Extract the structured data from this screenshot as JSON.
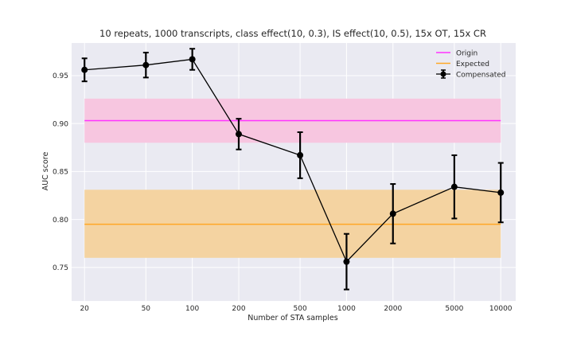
{
  "chart_data": {
    "type": "line",
    "title": "10 repeats, 1000 transcripts, class effect(10, 0.3), IS effect(10, 0.5), 15x OT, 15x CR",
    "xlabel": "Number of STA samples",
    "ylabel": "AUC score",
    "x_scale": "log",
    "xlim": [
      16.5,
      12500
    ],
    "ylim": [
      0.715,
      0.984
    ],
    "grid": true,
    "legend_position": "top-right",
    "x_ticks": [
      20,
      50,
      100,
      200,
      500,
      1000,
      2000,
      5000,
      10000
    ],
    "x_tick_labels": [
      "20",
      "50",
      "100",
      "200",
      "500",
      "1000",
      "2000",
      "5000",
      "10000"
    ],
    "y_ticks": [
      0.75,
      0.8,
      0.85,
      0.9,
      0.95
    ],
    "y_tick_labels": [
      "0.75",
      "0.80",
      "0.85",
      "0.90",
      "0.95"
    ],
    "bands": [
      {
        "name": "Origin",
        "color": "#ff33ff",
        "fill": "#f7c6e0",
        "x_range": [
          20,
          10000
        ],
        "value": 0.903,
        "lower": 0.88,
        "upper": 0.926
      },
      {
        "name": "Expected",
        "color": "#ffa726",
        "fill": "#f4d3a1",
        "x_range": [
          20,
          10000
        ],
        "value": 0.795,
        "lower": 0.76,
        "upper": 0.831
      }
    ],
    "series": [
      {
        "name": "Compensated",
        "color": "#000000",
        "x": [
          20,
          50,
          100,
          200,
          500,
          1000,
          2000,
          5000,
          10000
        ],
        "y": [
          0.956,
          0.961,
          0.967,
          0.889,
          0.867,
          0.756,
          0.806,
          0.834,
          0.828
        ],
        "err": [
          0.012,
          0.013,
          0.011,
          0.016,
          0.024,
          0.029,
          0.031,
          0.033,
          0.031
        ]
      }
    ]
  }
}
